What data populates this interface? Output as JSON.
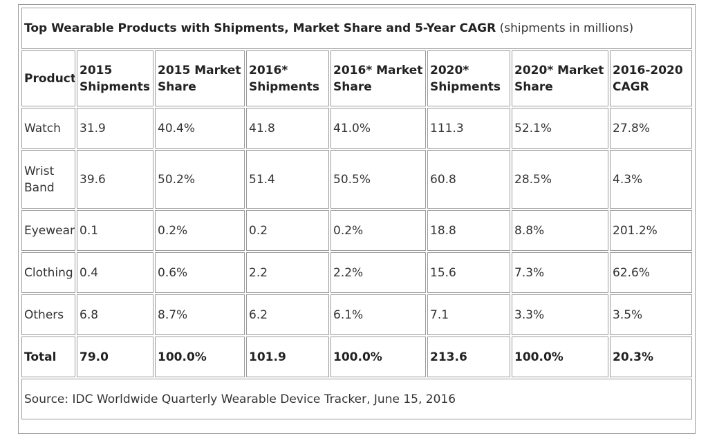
{
  "chart_data": {
    "type": "table",
    "title": "Top Wearable Products with Shipments, Market Share and 5-Year CAGR",
    "subtitle": "(shipments in millions)",
    "columns": [
      "Product",
      "2015 Shipments",
      "2015 Market Share",
      "2016* Shipments",
      "2016* Market Share",
      "2020* Shipments",
      "2020* Market Share",
      "2016-2020 CAGR"
    ],
    "rows": [
      [
        "Watch",
        "31.9",
        "40.4%",
        "41.8",
        "41.0%",
        "111.3",
        "52.1%",
        "27.8%"
      ],
      [
        "Wrist Band",
        "39.6",
        "50.2%",
        "51.4",
        "50.5%",
        "60.8",
        "28.5%",
        "4.3%"
      ],
      [
        "Eyewear",
        "0.1",
        "0.2%",
        "0.2",
        "0.2%",
        "18.8",
        "8.8%",
        "201.2%"
      ],
      [
        "Clothing",
        "0.4",
        "0.6%",
        "2.2",
        "2.2%",
        "15.6",
        "7.3%",
        "62.6%"
      ],
      [
        "Others",
        "6.8",
        "8.7%",
        "6.2",
        "6.1%",
        "7.1",
        "3.3%",
        "3.5%"
      ]
    ],
    "total": [
      "Total",
      "79.0",
      "100.0%",
      "101.9",
      "100.0%",
      "213.6",
      "100.0%",
      "20.3%"
    ],
    "source": "Source: IDC Worldwide Quarterly Wearable Device Tracker, June 15, 2016"
  }
}
